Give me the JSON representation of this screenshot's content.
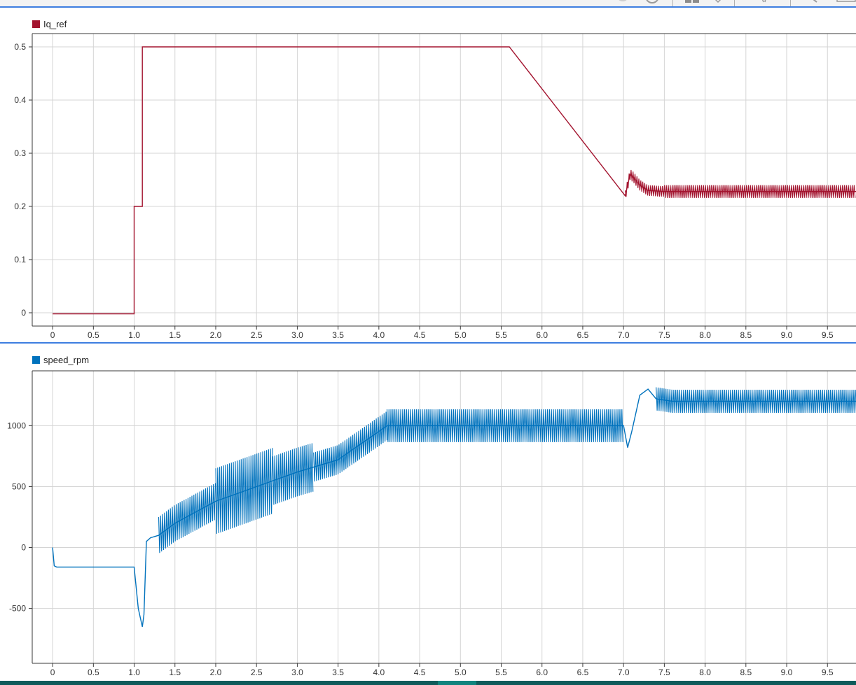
{
  "colors": {
    "iq_series": "#a3142f",
    "speed_series": "#0072bd",
    "grid": "#d4d4d4",
    "axis": "#3a3a3a",
    "accent": "#3d7ee0"
  },
  "toolbar": {
    "icons": [
      "record-icon",
      "sync-icon",
      "layout-icon",
      "dropdown-icon",
      "cursor-icon",
      "zoom-icon",
      "window-icon"
    ]
  },
  "chart_data": [
    {
      "type": "line",
      "legend_label": "Iq_ref",
      "x_ticks": [
        "0",
        "0.5",
        "1.0",
        "1.5",
        "2.0",
        "2.5",
        "3.0",
        "3.5",
        "4.0",
        "4.5",
        "5.0",
        "5.5",
        "6.0",
        "6.5",
        "7.0",
        "7.5",
        "8.0",
        "8.5",
        "9.0",
        "9.5"
      ],
      "y_ticks": [
        "0",
        "0.1",
        "0.2",
        "0.3",
        "0.4",
        "0.5"
      ],
      "xlim": [
        -0.25,
        9.85
      ],
      "ylim": [
        -0.025,
        0.525
      ],
      "grid": true,
      "legend": "top-left",
      "series": [
        {
          "x": [
            0,
            1.0,
            1.0,
            1.1,
            1.1,
            5.6,
            7.02,
            7.05,
            7.08,
            7.12,
            7.2,
            7.3,
            7.5,
            8.0,
            9.0,
            9.85
          ],
          "y": [
            -0.002,
            -0.002,
            0.2,
            0.2,
            0.5,
            0.5,
            0.22,
            0.24,
            0.26,
            0.255,
            0.24,
            0.23,
            0.228,
            0.228,
            0.228,
            0.228
          ],
          "ripple": [
            {
              "from": 7.02,
              "to": 7.5,
              "amplitude": 0.01
            },
            {
              "from": 7.5,
              "to": 9.85,
              "amplitude": 0.012
            }
          ]
        }
      ]
    },
    {
      "type": "line",
      "legend_label": "speed_rpm",
      "x_ticks": [
        "0",
        "0.5",
        "1.0",
        "1.5",
        "2.0",
        "2.5",
        "3.0",
        "3.5",
        "4.0",
        "4.5",
        "5.0",
        "5.5",
        "6.0",
        "6.5",
        "7.0",
        "7.5",
        "8.0",
        "8.5",
        "9.0",
        "9.5"
      ],
      "y_ticks": [
        "-500",
        "0",
        "500",
        "1000"
      ],
      "xlim": [
        -0.25,
        9.85
      ],
      "ylim": [
        -950,
        1450
      ],
      "grid": true,
      "legend": "top-left",
      "series": [
        {
          "x": [
            0,
            0.02,
            0.05,
            1.0,
            1.05,
            1.1,
            1.12,
            1.15,
            1.2,
            1.3,
            1.5,
            2.0,
            2.5,
            3.0,
            3.5,
            4.1,
            5.0,
            6.0,
            7.0,
            7.05,
            7.1,
            7.2,
            7.3,
            7.4,
            7.6,
            8.0,
            9.0,
            9.85
          ],
          "y": [
            0,
            -150,
            -160,
            -160,
            -500,
            -650,
            -550,
            50,
            80,
            100,
            200,
            380,
            500,
            620,
            720,
            1000,
            1000,
            1000,
            1000,
            820,
            950,
            1250,
            1300,
            1220,
            1200,
            1200,
            1200,
            1200
          ],
          "ripple": [
            {
              "from": 1.3,
              "to": 2.0,
              "amplitude": 150
            },
            {
              "from": 2.0,
              "to": 2.7,
              "amplitude": 270
            },
            {
              "from": 2.7,
              "to": 3.2,
              "amplitude": 200
            },
            {
              "from": 3.2,
              "to": 4.1,
              "amplitude": 120
            },
            {
              "from": 4.1,
              "to": 7.0,
              "amplitude": 135
            },
            {
              "from": 7.4,
              "to": 9.85,
              "amplitude": 95
            }
          ]
        }
      ]
    }
  ]
}
